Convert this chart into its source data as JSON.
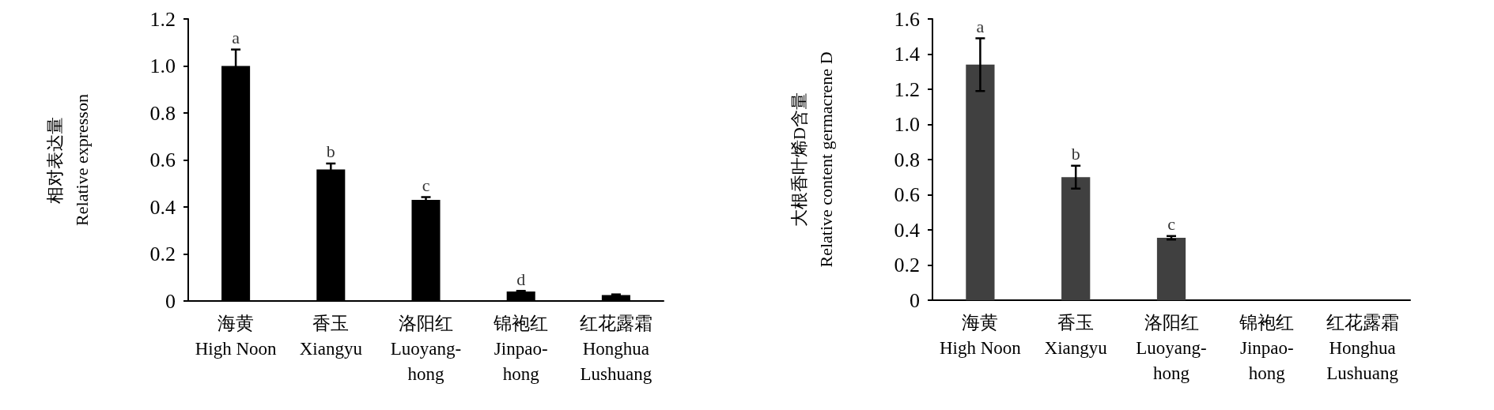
{
  "chart_data": [
    {
      "type": "bar",
      "ylabel": "相对表达量\nRelative expresson",
      "categories": [
        "海黄\nHigh Noon",
        "香玉\nXiangyu",
        "洛阳红\nLuoyang-\nhong",
        "锦袍红\nJinpao-\nhong",
        "红花露霜\nHonghua\nLushuang"
      ],
      "values": [
        1.0,
        0.56,
        0.43,
        0.04,
        0.025
      ],
      "errors": [
        0.07,
        0.025,
        0.012,
        0.003,
        0.003
      ],
      "color": "#000000",
      "ylim": [
        0,
        1.2
      ],
      "yticks": [
        0,
        {
          "value": 0.2,
          "label": "0.2"
        },
        {
          "value": 0.4,
          "label": "0.4"
        },
        {
          "value": 0.6,
          "label": "0.6"
        },
        {
          "value": 0.8,
          "label": "0.8"
        },
        {
          "value": 1.0,
          "label": "1.0"
        },
        {
          "value": 1.2,
          "label": "1.2"
        }
      ],
      "annotations": [
        {
          "text": "a",
          "x": "海黄\nHigh Noon",
          "y": 1.07
        },
        {
          "text": "b",
          "x": "香玉\nXiangyu",
          "y": 0.585
        },
        {
          "text": "c",
          "x": "洛阳红\nLuoyang-\nhong",
          "y": 0.442
        },
        {
          "text": "d",
          "x": "锦袍红\nJinpao-\nhong",
          "y": 0.043
        }
      ]
    },
    {
      "type": "bar",
      "ylabel": "大根香叶烯D含量\nRelative content germacrene D",
      "categories": [
        "海黄\nHigh Noon",
        "香玉\nXiangyu",
        "洛阳红\nLuoyang-\nhong",
        "锦袍红\nJinpao-\nhong",
        "红花露霜\nHonghua\nLushuang"
      ],
      "values": [
        1.34,
        0.7,
        0.355,
        0,
        0
      ],
      "errors": [
        0.15,
        0.065,
        0.01,
        null,
        null
      ],
      "color": "#404040",
      "ylim": [
        0,
        1.6
      ],
      "yticks": [
        0,
        {
          "value": 0.2,
          "label": "0.2"
        },
        {
          "value": 0.4,
          "label": "0.4"
        },
        {
          "value": 0.6,
          "label": "0.6"
        },
        {
          "value": 0.8,
          "label": "0.8"
        },
        {
          "value": 1.0,
          "label": "1.0"
        },
        {
          "value": 1.2,
          "label": "1.2"
        },
        {
          "value": 1.4,
          "label": "1.4"
        },
        {
          "value": 1.6,
          "label": "1.6"
        }
      ],
      "annotations": [
        {
          "text": "a",
          "x": "海黄\nHigh Noon",
          "y": 1.49
        },
        {
          "text": "b",
          "x": "香玉\nXiangyu",
          "y": 0.765
        },
        {
          "text": "c",
          "x": "洛阳红\nLuoyang-\nhong",
          "y": 0.365
        }
      ]
    }
  ]
}
